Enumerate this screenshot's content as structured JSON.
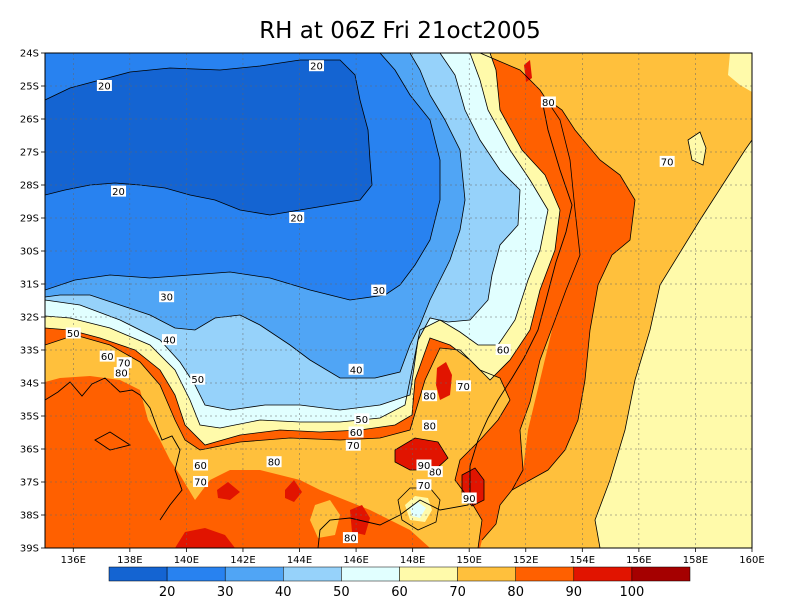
{
  "title": "RH at 06Z Fri 21oct2005",
  "map": {
    "lon_labels": [
      "136E",
      "138E",
      "140E",
      "142E",
      "144E",
      "146E",
      "148E",
      "150E",
      "152E",
      "154E",
      "156E",
      "158E",
      "160E"
    ],
    "lat_labels": [
      "24S",
      "25S",
      "26S",
      "27S",
      "28S",
      "29S",
      "30S",
      "31S",
      "32S",
      "33S",
      "34S",
      "35S",
      "36S",
      "37S",
      "38S",
      "39S"
    ],
    "contour_labels": [
      {
        "text": "20",
        "lon": 137.1,
        "lat": -25.0
      },
      {
        "text": "20",
        "lon": 144.6,
        "lat": -24.4
      },
      {
        "text": "20",
        "lon": 137.6,
        "lat": -28.2
      },
      {
        "text": "20",
        "lon": 143.9,
        "lat": -29.0
      },
      {
        "text": "30",
        "lon": 139.3,
        "lat": -31.4
      },
      {
        "text": "30",
        "lon": 146.8,
        "lat": -31.2
      },
      {
        "text": "40",
        "lon": 139.4,
        "lat": -32.7
      },
      {
        "text": "40",
        "lon": 146.0,
        "lat": -33.6
      },
      {
        "text": "50",
        "lon": 136.0,
        "lat": -32.5
      },
      {
        "text": "50",
        "lon": 140.4,
        "lat": -33.9
      },
      {
        "text": "50",
        "lon": 146.2,
        "lat": -35.1
      },
      {
        "text": "60",
        "lon": 137.2,
        "lat": -33.2
      },
      {
        "text": "60",
        "lon": 146.0,
        "lat": -35.5
      },
      {
        "text": "60",
        "lon": 140.5,
        "lat": -36.5
      },
      {
        "text": "60",
        "lon": 151.2,
        "lat": -33.0
      },
      {
        "text": "70",
        "lon": 137.8,
        "lat": -33.4
      },
      {
        "text": "70",
        "lon": 145.9,
        "lat": -35.9
      },
      {
        "text": "70",
        "lon": 140.5,
        "lat": -37.0
      },
      {
        "text": "70",
        "lon": 149.8,
        "lat": -34.1
      },
      {
        "text": "70",
        "lon": 148.4,
        "lat": -37.1
      },
      {
        "text": "70",
        "lon": 157.0,
        "lat": -27.3
      },
      {
        "text": "80",
        "lon": 137.7,
        "lat": -33.7
      },
      {
        "text": "80",
        "lon": 143.1,
        "lat": -36.4
      },
      {
        "text": "80",
        "lon": 148.6,
        "lat": -34.4
      },
      {
        "text": "80",
        "lon": 148.6,
        "lat": -35.3
      },
      {
        "text": "80",
        "lon": 148.8,
        "lat": -36.7
      },
      {
        "text": "80",
        "lon": 145.8,
        "lat": -38.7
      },
      {
        "text": "80",
        "lon": 152.8,
        "lat": -25.5
      },
      {
        "text": "90",
        "lon": 148.4,
        "lat": -36.5
      },
      {
        "text": "90",
        "lon": 150.0,
        "lat": -37.5
      }
    ]
  },
  "colorbar": {
    "labels": [
      "20",
      "30",
      "40",
      "50",
      "60",
      "70",
      "80",
      "90",
      "100"
    ],
    "colors": [
      "#1464d2",
      "#2882f0",
      "#50a5f5",
      "#96d2fa",
      "#e1ffff",
      "#fffaaa",
      "#ffc03c",
      "#ff6000",
      "#e11400",
      "#a50000"
    ]
  },
  "colors": {
    "rh_10_20": "#1464d2",
    "rh_20_30": "#2882f0",
    "rh_30_40": "#50a5f5",
    "rh_40_50": "#96d2fa",
    "rh_50_60": "#e1ffff",
    "rh_60_70": "#fffaaa",
    "rh_70_80": "#ffc03c",
    "rh_80_90": "#ff6000",
    "rh_90_100": "#e11400"
  }
}
